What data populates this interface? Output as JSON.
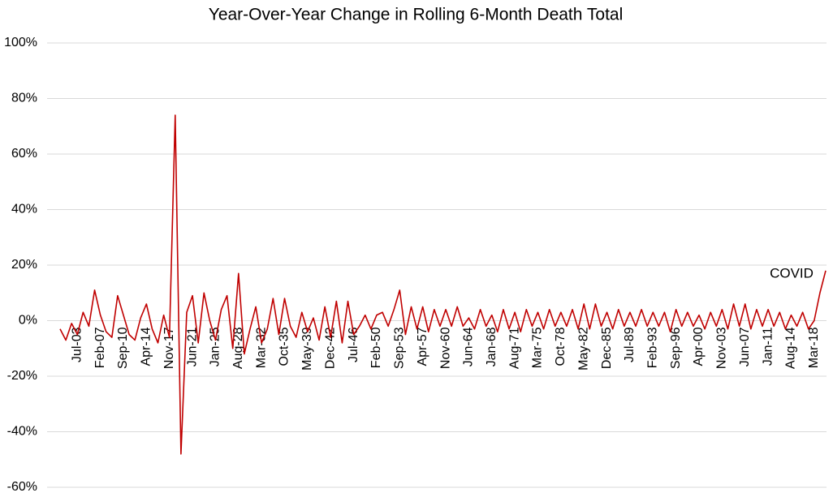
{
  "chart_data": {
    "type": "line",
    "title": "Year-Over-Year Change in Rolling 6-Month Death Total",
    "categories": [
      null,
      null,
      null,
      "Jul-03",
      null,
      null,
      null,
      "Feb-07",
      null,
      null,
      null,
      "Sep-10",
      null,
      null,
      null,
      "Apr-14",
      null,
      null,
      null,
      "Nov-17",
      null,
      null,
      null,
      "Jun-21",
      null,
      null,
      null,
      "Jan-25",
      null,
      null,
      null,
      "Aug-28",
      null,
      null,
      null,
      "Mar-32",
      null,
      null,
      null,
      "Oct-35",
      null,
      null,
      null,
      "May-39",
      null,
      null,
      null,
      "Dec-42",
      null,
      null,
      null,
      "Jul-46",
      null,
      null,
      null,
      "Feb-50",
      null,
      null,
      null,
      "Sep-53",
      null,
      null,
      null,
      "Apr-57",
      null,
      null,
      null,
      "Nov-60",
      null,
      null,
      null,
      "Jun-64",
      null,
      null,
      null,
      "Jan-68",
      null,
      null,
      null,
      "Aug-71",
      null,
      null,
      null,
      "Mar-75",
      null,
      null,
      null,
      "Oct-78",
      null,
      null,
      null,
      "May-82",
      null,
      null,
      null,
      "Dec-85",
      null,
      null,
      null,
      "Jul-89",
      null,
      null,
      null,
      "Feb-93",
      null,
      null,
      null,
      "Sep-96",
      null,
      null,
      null,
      "Apr-00",
      null,
      null,
      null,
      "Nov-03",
      null,
      null,
      null,
      "Jun-07",
      null,
      null,
      null,
      "Jan-11",
      null,
      null,
      null,
      "Aug-14",
      null,
      null,
      null,
      "Mar-18",
      null,
      null
    ],
    "values": [
      -3,
      -7,
      -1,
      -5,
      3,
      -2,
      11,
      2,
      -4,
      -6,
      9,
      2,
      -5,
      -7,
      1,
      6,
      -3,
      -8,
      2,
      -6,
      74,
      -48,
      3,
      9,
      -8,
      10,
      0,
      -7,
      4,
      9,
      -10,
      17,
      -12,
      -3,
      5,
      -8,
      -3,
      8,
      -5,
      8,
      -2,
      -6,
      3,
      -4,
      1,
      -7,
      5,
      -6,
      7,
      -8,
      7,
      -5,
      -2,
      2,
      -3,
      2,
      3,
      -2,
      4,
      11,
      -5,
      5,
      -3,
      5,
      -4,
      4,
      -2,
      4,
      -2,
      5,
      -2,
      1,
      -3,
      4,
      -2,
      2,
      -4,
      4,
      -3,
      3,
      -4,
      4,
      -2,
      3,
      -3,
      4,
      -2,
      3,
      -2,
      4,
      -3,
      6,
      -3,
      6,
      -2,
      3,
      -3,
      4,
      -2,
      3,
      -2,
      4,
      -2,
      3,
      -2,
      3,
      -4,
      4,
      -2,
      3,
      -2,
      2,
      -3,
      3,
      -2,
      4,
      -3,
      6,
      -2,
      6,
      -3,
      4,
      -2,
      4,
      -2,
      3,
      -3,
      2,
      -2,
      3,
      -3,
      0,
      10,
      18
    ],
    "color": "#c00000",
    "ylim": [
      -60,
      100
    ],
    "yticks": [
      {
        "value": -60,
        "label": "-60%"
      },
      {
        "value": -40,
        "label": "-40%"
      },
      {
        "value": -20,
        "label": "-20%"
      },
      {
        "value": 0,
        "label": "0%"
      },
      {
        "value": 20,
        "label": "20%"
      },
      {
        "value": 40,
        "label": "40%"
      },
      {
        "value": 60,
        "label": "60%"
      },
      {
        "value": 80,
        "label": "80%"
      },
      {
        "value": 100,
        "label": "100%"
      }
    ],
    "grid": true,
    "annotations": [
      {
        "text": "COVID"
      }
    ]
  }
}
